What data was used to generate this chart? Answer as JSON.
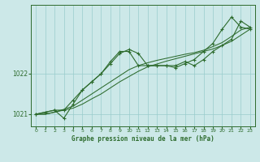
{
  "title": "Graphe pression niveau de la mer (hPa)",
  "bg_color": "#cce8e8",
  "grid_color": "#99cccc",
  "line_color": "#2d6b2d",
  "xlim": [
    -0.5,
    23.5
  ],
  "ylim": [
    1020.7,
    1023.7
  ],
  "yticks": [
    1021,
    1022
  ],
  "xticks": [
    0,
    1,
    2,
    3,
    4,
    5,
    6,
    7,
    8,
    9,
    10,
    11,
    12,
    13,
    14,
    15,
    16,
    17,
    18,
    19,
    20,
    21,
    22,
    23
  ],
  "series1_x": [
    0,
    1,
    2,
    3,
    4,
    5,
    6,
    7,
    8,
    9,
    10,
    11,
    12,
    13,
    14,
    15,
    16,
    17,
    18,
    19,
    20,
    21,
    22,
    23
  ],
  "series1_y": [
    1021.0,
    1021.05,
    1021.1,
    1021.1,
    1021.35,
    1021.6,
    1021.8,
    1022.0,
    1022.25,
    1022.5,
    1022.6,
    1022.5,
    1022.2,
    1022.2,
    1022.2,
    1022.2,
    1022.3,
    1022.2,
    1022.35,
    1022.55,
    1022.7,
    1022.85,
    1023.3,
    1023.15
  ],
  "series2_x": [
    0,
    1,
    2,
    3,
    4,
    5,
    6,
    7,
    8,
    9,
    10,
    11,
    12,
    13,
    14,
    15,
    16,
    17,
    18,
    19,
    20,
    21,
    22,
    23
  ],
  "series2_y": [
    1021.0,
    1021.0,
    1021.05,
    1021.1,
    1021.15,
    1021.25,
    1021.38,
    1021.5,
    1021.65,
    1021.8,
    1021.93,
    1022.06,
    1022.17,
    1022.24,
    1022.31,
    1022.37,
    1022.43,
    1022.49,
    1022.55,
    1022.61,
    1022.7,
    1022.8,
    1022.95,
    1023.1
  ],
  "series3_x": [
    0,
    2,
    3,
    4,
    5,
    6,
    7,
    8,
    9,
    10,
    11,
    12,
    13,
    14,
    15,
    16,
    17,
    18,
    19,
    20,
    21,
    22,
    23
  ],
  "series3_y": [
    1021.0,
    1021.1,
    1020.9,
    1021.25,
    1021.6,
    1021.8,
    1022.0,
    1022.3,
    1022.55,
    1022.55,
    1022.2,
    1022.2,
    1022.2,
    1022.2,
    1022.15,
    1022.25,
    1022.35,
    1022.55,
    1022.75,
    1023.1,
    1023.4,
    1023.15,
    1023.1
  ],
  "series4_x": [
    0,
    1,
    2,
    3,
    4,
    5,
    6,
    7,
    8,
    9,
    10,
    11,
    12,
    13,
    14,
    15,
    16,
    17,
    18,
    19,
    20,
    21,
    22,
    23
  ],
  "series4_y": [
    1021.0,
    1021.0,
    1021.05,
    1021.12,
    1021.2,
    1021.35,
    1021.5,
    1021.65,
    1021.8,
    1021.95,
    1022.1,
    1022.2,
    1022.27,
    1022.33,
    1022.38,
    1022.43,
    1022.48,
    1022.52,
    1022.58,
    1022.67,
    1022.77,
    1022.92,
    1023.08,
    1023.15
  ]
}
